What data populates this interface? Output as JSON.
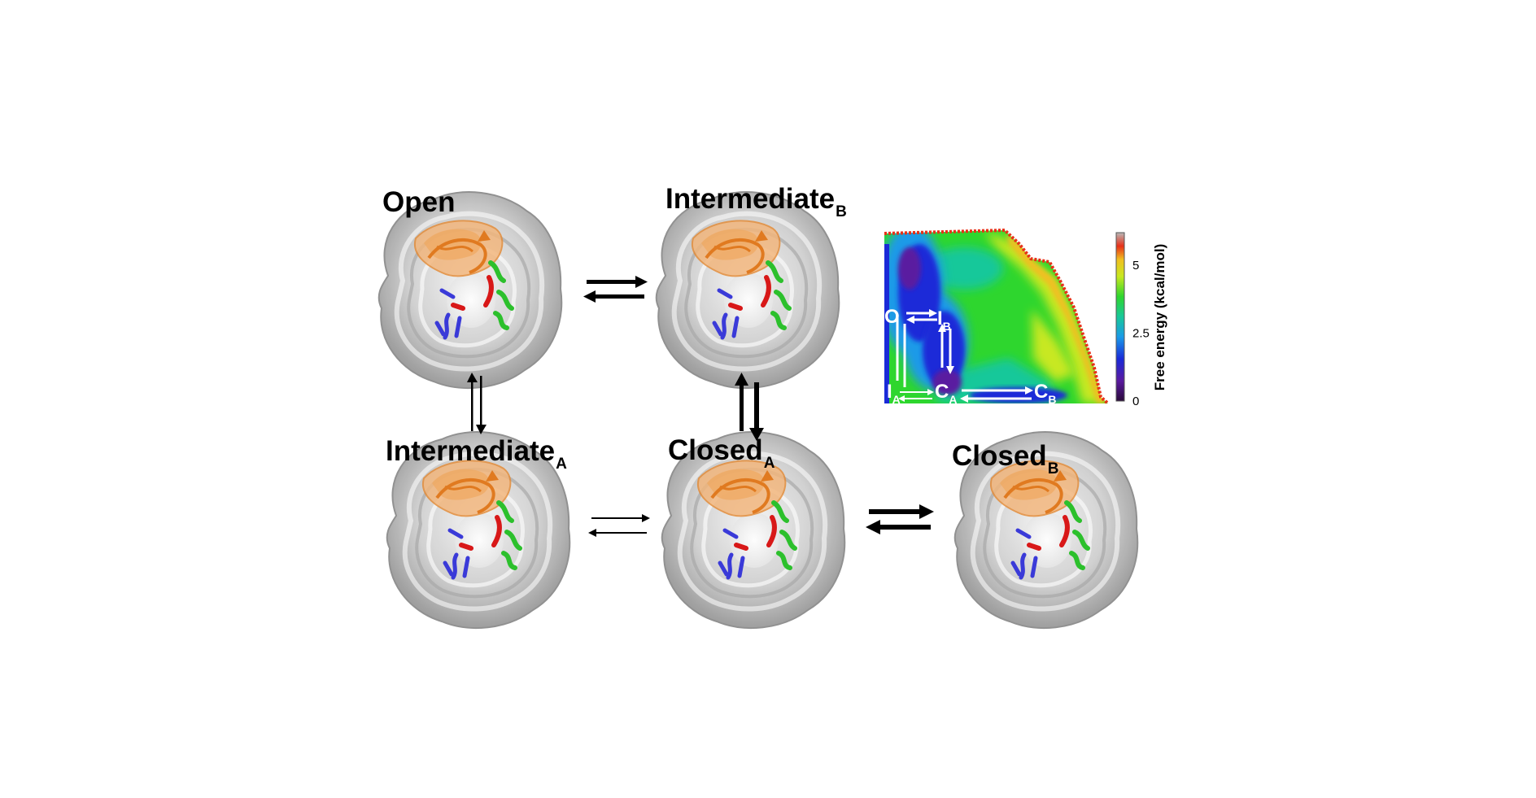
{
  "states": {
    "open": {
      "name": "Open",
      "sub": ""
    },
    "intermediate_b": {
      "name": "Intermediate",
      "sub": "B"
    },
    "intermediate_a": {
      "name": "Intermediate",
      "sub": "A"
    },
    "closed_a": {
      "name": "Closed",
      "sub": "A"
    },
    "closed_b": {
      "name": "Closed",
      "sub": "B"
    }
  },
  "energy_map": {
    "labels": {
      "o": "O",
      "ib": {
        "main": "I",
        "sub": "B"
      },
      "ia": {
        "main": "I",
        "sub": "A"
      },
      "ca": {
        "main": "C",
        "sub": "A"
      },
      "cb": {
        "main": "C",
        "sub": "B"
      }
    },
    "colorbar": {
      "title": "Free energy (kcal/mol)",
      "ticks": [
        {
          "label": "5",
          "value": 5
        },
        {
          "label": "2.5",
          "value": 2.5
        },
        {
          "label": "0",
          "value": 0
        }
      ],
      "range": [
        0,
        6.2
      ]
    }
  }
}
